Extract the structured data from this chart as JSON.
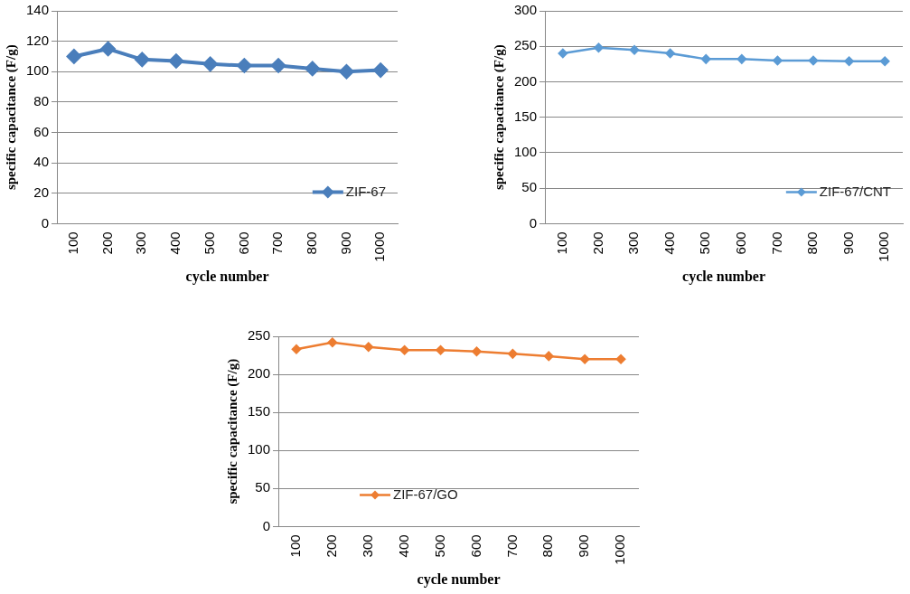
{
  "chart_data": [
    {
      "type": "line",
      "xlabel": "cycle number",
      "ylabel": "specific capacitance (F/g)",
      "categories": [
        "100",
        "200",
        "300",
        "400",
        "500",
        "600",
        "700",
        "800",
        "900",
        "1000"
      ],
      "ylim": [
        0,
        140
      ],
      "yticks": [
        0,
        20,
        40,
        60,
        80,
        100,
        120,
        140
      ],
      "grid": "y",
      "legend": "bottom right",
      "marker": "diamond",
      "series": [
        {
          "name": "ZIF-67",
          "color": "#4a7ebb",
          "values": [
            110,
            115,
            108,
            107,
            105,
            104,
            104,
            102,
            100,
            101
          ]
        }
      ]
    },
    {
      "type": "line",
      "xlabel": "cycle number",
      "ylabel": "specific capacitance (F/g)",
      "categories": [
        "100",
        "200",
        "300",
        "400",
        "500",
        "600",
        "700",
        "800",
        "900",
        "1000"
      ],
      "ylim": [
        0,
        300
      ],
      "yticks": [
        0,
        50,
        100,
        150,
        200,
        250,
        300
      ],
      "grid": "y",
      "legend": "bottom right",
      "marker": "diamond",
      "series": [
        {
          "name": "ZIF-67/CNT",
          "color": "#5b9bd5",
          "values": [
            240,
            248,
            245,
            240,
            232,
            232,
            230,
            230,
            229,
            229
          ]
        }
      ]
    },
    {
      "type": "line",
      "xlabel": "cycle number",
      "ylabel": "specific capacitance (F/g)",
      "categories": [
        "100",
        "200",
        "300",
        "400",
        "500",
        "600",
        "700",
        "800",
        "900",
        "1000"
      ],
      "ylim": [
        0,
        250
      ],
      "yticks": [
        0,
        50,
        100,
        150,
        200,
        250
      ],
      "grid": "y",
      "legend": "bottom left",
      "marker": "diamond",
      "series": [
        {
          "name": "ZIF-67/GO",
          "color": "#ed7d31",
          "values": [
            233,
            242,
            236,
            232,
            232,
            230,
            227,
            224,
            220,
            220
          ]
        }
      ]
    }
  ]
}
